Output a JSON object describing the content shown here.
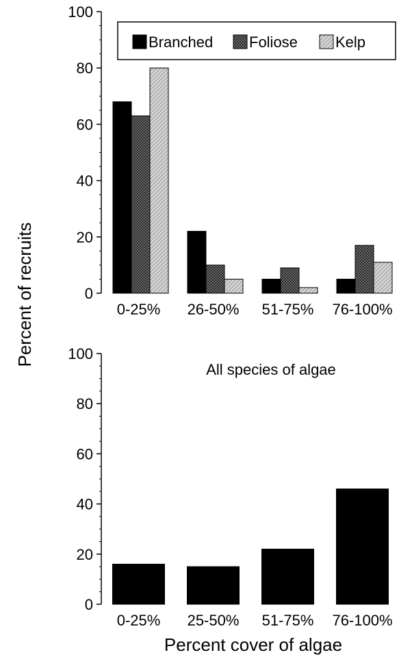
{
  "shared_ylabel": "Percent of recruits",
  "shared_xlabel": "Percent cover of algae",
  "chart_data": [
    {
      "type": "bar",
      "title": "",
      "categories": [
        "0-25%",
        "26-50%",
        "51-75%",
        "76-100%"
      ],
      "series": [
        {
          "name": "Branched",
          "values": [
            68,
            22,
            5,
            5
          ],
          "color": "#000000",
          "pattern": "solid"
        },
        {
          "name": "Foliose",
          "values": [
            63,
            10,
            9,
            17
          ],
          "color": "#333333",
          "pattern": "dark-checker"
        },
        {
          "name": "Kelp",
          "values": [
            80,
            5,
            2,
            11
          ],
          "color": "#bdbdbd",
          "pattern": "light-hatch"
        }
      ],
      "ylim": [
        0,
        100
      ],
      "yticks": [
        0,
        20,
        40,
        60,
        80,
        100
      ],
      "legend_position": "top"
    },
    {
      "type": "bar",
      "title": "All species of algae",
      "categories": [
        "0-25%",
        "25-50%",
        "51-75%",
        "76-100%"
      ],
      "series": [
        {
          "name": "",
          "values": [
            16,
            15,
            22,
            46
          ],
          "color": "#000000",
          "pattern": "solid"
        }
      ],
      "ylim": [
        0,
        100
      ],
      "yticks": [
        0,
        20,
        40,
        60,
        80,
        100
      ]
    }
  ]
}
